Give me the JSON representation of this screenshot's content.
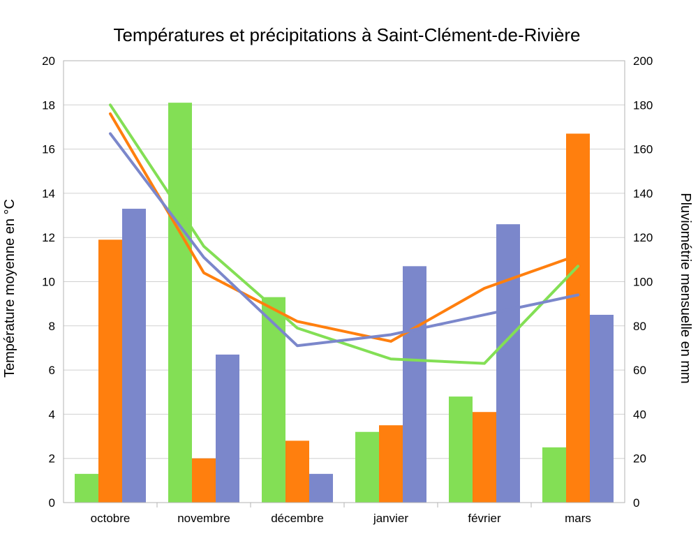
{
  "chart_data": {
    "type": "bar",
    "title": "Températures et précipitations à Saint-Clément-de-Rivière",
    "ylabel_left": "Température moyenne en °C",
    "ylabel_right": "Pluviométrie mensuelle en mm",
    "categories": [
      "octobre",
      "novembre",
      "décembre",
      "janvier",
      "février",
      "mars"
    ],
    "ylim_left": [
      0,
      20
    ],
    "ylim_right": [
      0,
      200
    ],
    "yticks_left": [
      "0",
      "2",
      "4",
      "6",
      "8",
      "10",
      "12",
      "14",
      "16",
      "18",
      "20"
    ],
    "yticks_right": [
      "0",
      "20",
      "40",
      "60",
      "80",
      "100",
      "120",
      "140",
      "160",
      "180",
      "200"
    ],
    "grid": true,
    "bar_series": [
      {
        "color": "#83df55",
        "axis": "right",
        "values": [
          13,
          181,
          93,
          32,
          48,
          25
        ]
      },
      {
        "color": "#ff7f0e",
        "axis": "right",
        "values": [
          119,
          20,
          28,
          35,
          41,
          167
        ]
      },
      {
        "color": "#7b87cb",
        "axis": "right",
        "values": [
          133,
          67,
          13,
          107,
          126,
          85
        ]
      }
    ],
    "line_series": [
      {
        "color": "#83df55",
        "axis": "left",
        "values": [
          18.0,
          11.6,
          7.9,
          6.5,
          6.3,
          10.7
        ]
      },
      {
        "color": "#ff7f0e",
        "axis": "left",
        "values": [
          17.6,
          10.4,
          8.2,
          7.3,
          9.7,
          11.2
        ]
      },
      {
        "color": "#7b87cb",
        "axis": "left",
        "values": [
          16.7,
          11.1,
          7.1,
          7.6,
          8.5,
          9.4
        ]
      }
    ]
  }
}
